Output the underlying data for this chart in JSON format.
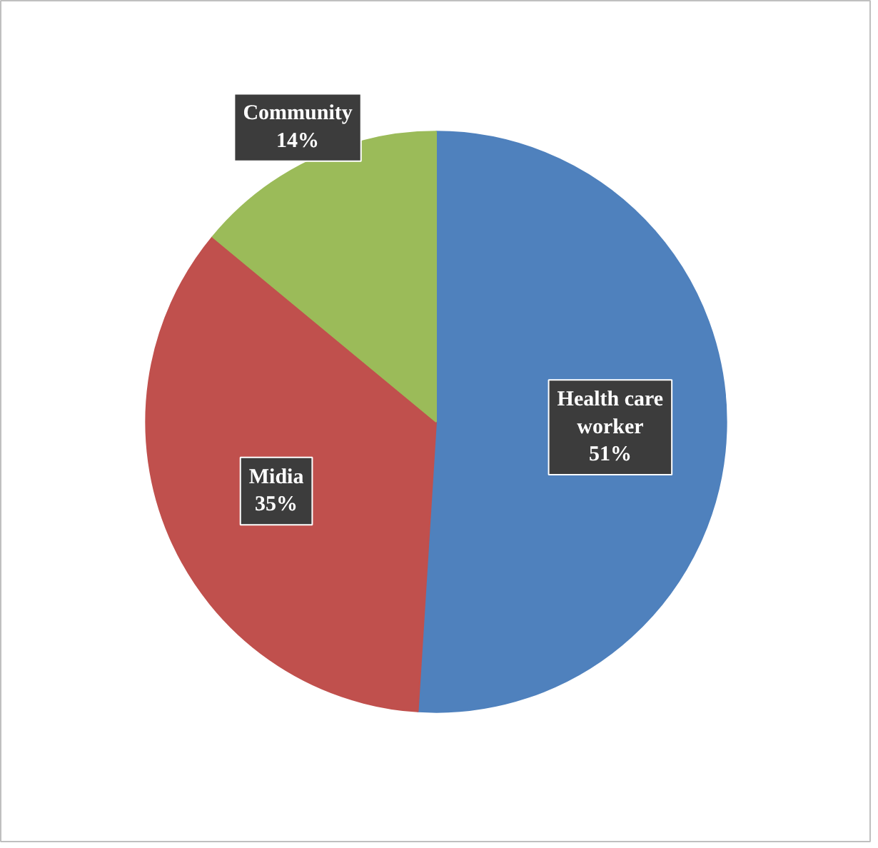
{
  "chart_data": {
    "type": "pie",
    "categories": [
      "Health care worker",
      "Midia",
      "Community"
    ],
    "values": [
      51,
      35,
      14
    ],
    "colors": [
      "#4f81bd",
      "#c0504d",
      "#9bbb59"
    ],
    "value_labels": [
      "51%",
      "35%",
      "14%"
    ]
  }
}
